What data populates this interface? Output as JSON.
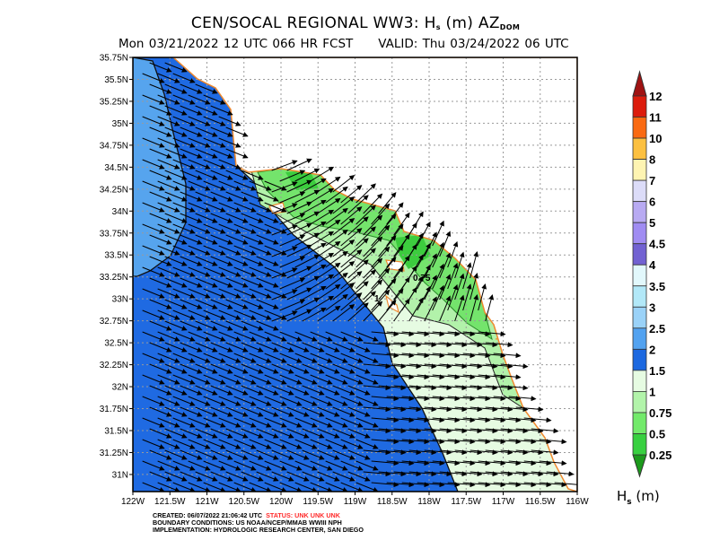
{
  "header": {
    "title_main": "CEN/SOCAL REGIONAL WW3: H",
    "title_sub_s": "s",
    "title_tail": " (m) AZ",
    "title_sub_dom": "DOM",
    "cycle": "Mon 03/21/2022 12 UTC 066 HR FCST",
    "valid": "VALID: Thu 03/24/2022 06 UTC"
  },
  "map": {
    "lat_labels": [
      "35.75N",
      "35.5N",
      "35.25N",
      "35N",
      "34.75N",
      "34.5N",
      "34.25N",
      "34N",
      "33.75N",
      "33.5N",
      "33.25N",
      "33N",
      "32.75N",
      "32.5N",
      "32.25N",
      "32N",
      "31.75N",
      "31.5N",
      "31.25N",
      "31N"
    ],
    "lon_labels": [
      "122W",
      "121.5W",
      "121W",
      "120.5W",
      "120W",
      "119.5W",
      "119W",
      "118.5W",
      "118W",
      "117.5W",
      "117W",
      "116.5W",
      "116W"
    ],
    "contour_labels": [
      "1",
      "0.75"
    ],
    "colors": {
      "land": "#ffffff",
      "hs_2_2_5": "#56a4ee",
      "hs_1_5_2": "#1f6ae2",
      "hs_1_1_5": "#e6fbe2",
      "hs_0_75_1": "#b2f2aa",
      "hs_0_5_0_75": "#74e46c",
      "hs_0_25_0_5": "#3ccc3e",
      "coast": "#f08a30"
    }
  },
  "colorbar": {
    "labels": [
      "12",
      "11",
      "10",
      "8",
      "7",
      "6",
      "5",
      "4.5",
      "4",
      "3.5",
      "3",
      "2.5",
      "2",
      "1.5",
      "1",
      "0.75",
      "0.5",
      "0.25"
    ],
    "colors": [
      "#dc1c0c",
      "#fa6a12",
      "#fcc040",
      "#fef4b2",
      "#dcdcf8",
      "#b8aaf2",
      "#a08cf2",
      "#7262d2",
      "#e2f8fc",
      "#b2e8f8",
      "#9ad2f8",
      "#52a2f0",
      "#1c68e0",
      "#e6fbe2",
      "#b2f4aa",
      "#72ea6a",
      "#38d040"
    ],
    "over_color": "#a01212",
    "under_color": "#1c9a1c",
    "units_main": "H",
    "units_sub": "s",
    "units_tail": " (m)"
  },
  "footer": {
    "created": "CREATED: 06/07/2022 21:06:42 UTC",
    "status": "STATUS: UNK UNK UNK",
    "boundary": "BOUNDARY CONDITIONS: US NOAA/NCEP/MMAB WWIII NPH",
    "implementation": "IMPLEMENTATION: HYDROLOGIC RESEARCH CENTER, SAN DIEGO"
  }
}
